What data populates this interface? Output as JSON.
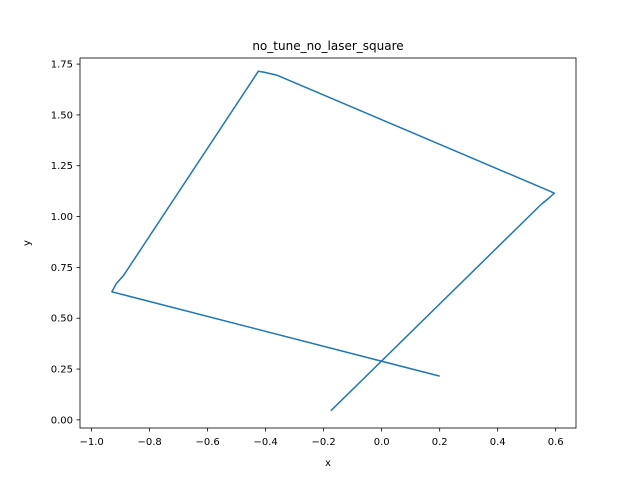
{
  "chart_data": {
    "type": "line",
    "title": "no_tune_no_laser_square",
    "xlabel": "x",
    "ylabel": "y",
    "xlim": [
      -1.04,
      0.67
    ],
    "ylim": [
      -0.04,
      1.78
    ],
    "grid": false,
    "xticks": [
      -1.0,
      -0.8,
      -0.6,
      -0.4,
      -0.2,
      0.0,
      0.2,
      0.4,
      0.6
    ],
    "xtick_labels": [
      "−1.0",
      "−0.8",
      "−0.6",
      "−0.4",
      "−0.2",
      "0.0",
      "0.2",
      "0.4",
      "0.6"
    ],
    "yticks": [
      0.0,
      0.25,
      0.5,
      0.75,
      1.0,
      1.25,
      1.5,
      1.75
    ],
    "ytick_labels": [
      "0.00",
      "0.25",
      "0.50",
      "0.75",
      "1.00",
      "1.25",
      "1.50",
      "1.75"
    ],
    "series": [
      {
        "color": "#1f77b4",
        "x": [
          -0.175,
          0.55,
          0.58,
          0.595,
          0.58,
          -0.36,
          -0.405,
          -0.425,
          -0.89,
          -0.915,
          -0.93,
          0.2
        ],
        "y": [
          0.045,
          1.06,
          1.095,
          1.115,
          1.125,
          1.695,
          1.71,
          1.715,
          0.71,
          0.67,
          0.63,
          0.215
        ]
      }
    ]
  }
}
